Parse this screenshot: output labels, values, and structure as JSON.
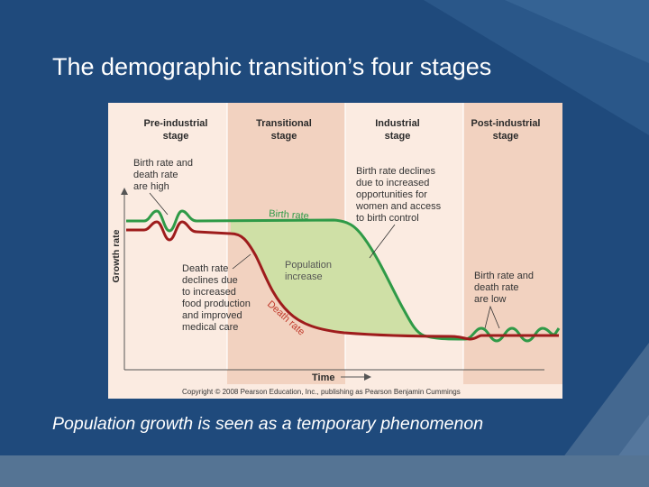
{
  "slide": {
    "title": "The demographic transition’s four stages",
    "caption": "Population growth is seen as a temporary phenomenon"
  },
  "figure": {
    "stages": [
      {
        "line1": "Pre-industrial",
        "line2": "stage"
      },
      {
        "line1": "Transitional",
        "line2": "stage"
      },
      {
        "line1": "Industrial",
        "line2": "stage"
      },
      {
        "line1": "Post-industrial",
        "line2": "stage"
      }
    ],
    "annotations": {
      "pre": [
        "Birth rate and",
        "death rate",
        "are high"
      ],
      "death_decline": [
        "Death rate",
        "declines due",
        "to increased",
        "food production",
        "and improved",
        "medical care"
      ],
      "birth_decline": [
        "Birth rate declines",
        "due to increased",
        "opportunities for",
        "women and access",
        "to birth control"
      ],
      "post": [
        "Birth rate and",
        "death rate",
        "are low"
      ],
      "population": [
        "Population",
        "increase"
      ]
    },
    "birth_rate_label": "Birth rate",
    "death_rate_label": "Death rate",
    "y_axis_label": "Growth rate",
    "x_axis_label": "Time",
    "copyright": "Copyright © 2008 Pearson Education, Inc., publishing as Pearson Benjamin Cummings",
    "colors": {
      "birth": "#2f9a47",
      "death": "#9e1c1c",
      "fill": "#cfe0a6",
      "panel_light": "#fbebe1",
      "panel_dark": "#f2d2c0"
    }
  }
}
